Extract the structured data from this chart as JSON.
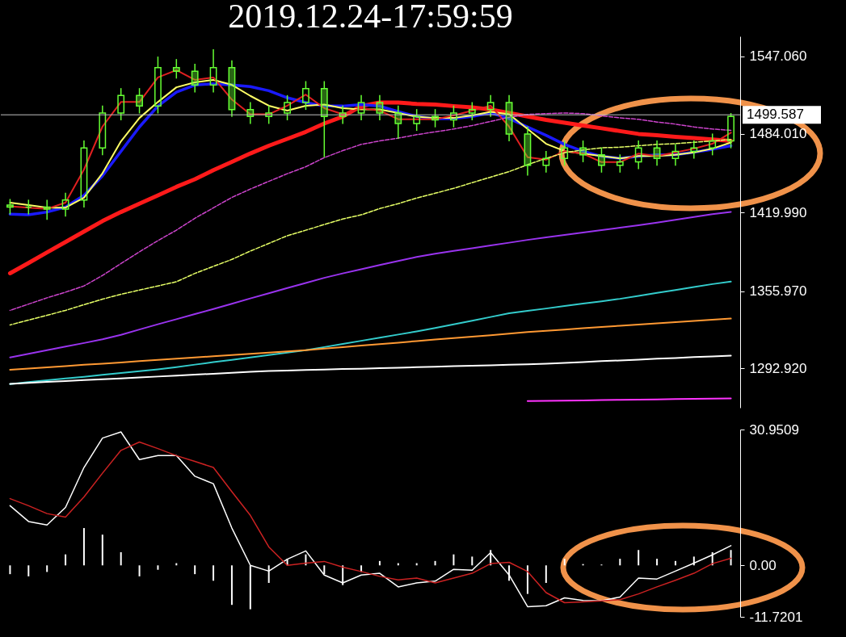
{
  "chart_data": [
    {
      "type": "candlestick",
      "title": "2019.12.24-17:59:59",
      "color": "#66ff33",
      "categories": [
        null,
        null,
        null,
        null,
        null,
        null,
        null,
        null,
        null,
        null,
        null,
        null,
        null,
        null,
        null,
        null,
        null,
        null,
        null,
        null,
        null,
        null,
        null,
        null,
        null,
        null,
        null,
        null,
        null,
        null,
        null,
        null,
        null,
        null,
        null,
        null,
        null,
        null,
        null,
        null
      ],
      "ohlc": [
        [
          1426.0,
          1431.0,
          1418.4,
          1424.4
        ],
        [
          1424.4,
          1430.4,
          1418.4,
          1424.4
        ],
        [
          1424.4,
          1430.4,
          1414.0,
          1422.7
        ],
        [
          1422.7,
          1436.1,
          1416.7,
          1430.1
        ],
        [
          1430.1,
          1478.6,
          1424.1,
          1472.6
        ],
        [
          1472.6,
          1507.1,
          1466.6,
          1501.1
        ],
        [
          1501.1,
          1521.3,
          1495.1,
          1515.3
        ],
        [
          1515.3,
          1521.3,
          1500.7,
          1506.7
        ],
        [
          1506.7,
          1547.0,
          1500.7,
          1538.0
        ],
        [
          1538.0,
          1545.0,
          1529.1,
          1535.1
        ],
        [
          1535.1,
          1541.1,
          1517.8,
          1523.8
        ],
        [
          1523.8,
          1553.0,
          1517.8,
          1538.0
        ],
        [
          1538.0,
          1544.0,
          1497.9,
          1503.9
        ],
        [
          1503.9,
          1509.9,
          1492.2,
          1498.2
        ],
        [
          1498.2,
          1507.1,
          1492.2,
          1501.1
        ],
        [
          1501.1,
          1515.6,
          1495.1,
          1509.6
        ],
        [
          1509.6,
          1527.0,
          1503.6,
          1521.0
        ],
        [
          1521.0,
          1527.0,
          1465.0,
          1498.2
        ],
        [
          1498.2,
          1507.1,
          1492.2,
          1501.1
        ],
        [
          1501.1,
          1515.6,
          1495.1,
          1509.6
        ],
        [
          1509.6,
          1515.6,
          1495.1,
          1501.1
        ],
        [
          1501.1,
          1507.1,
          1480.0,
          1492.5
        ],
        [
          1492.5,
          1504.2,
          1486.5,
          1498.2
        ],
        [
          1498.2,
          1504.2,
          1489.4,
          1495.4
        ],
        [
          1495.4,
          1507.1,
          1489.4,
          1501.1
        ],
        [
          1501.1,
          1509.9,
          1495.1,
          1503.9
        ],
        [
          1503.9,
          1515.6,
          1497.9,
          1509.6
        ],
        [
          1509.6,
          1515.6,
          1478.0,
          1484.0
        ],
        [
          1484.0,
          1490.0,
          1450.0,
          1458.5
        ],
        [
          1458.5,
          1470.1,
          1452.5,
          1464.1
        ],
        [
          1464.1,
          1478.6,
          1458.1,
          1472.6
        ],
        [
          1472.6,
          1478.6,
          1461.0,
          1467.0
        ],
        [
          1467.0,
          1473.0,
          1452.5,
          1458.5
        ],
        [
          1458.5,
          1467.3,
          1452.5,
          1461.3
        ],
        [
          1461.3,
          1478.6,
          1455.3,
          1472.6
        ],
        [
          1472.6,
          1478.6,
          1458.1,
          1464.1
        ],
        [
          1464.1,
          1475.8,
          1458.1,
          1469.8
        ],
        [
          1469.8,
          1478.6,
          1463.8,
          1472.6
        ],
        [
          1472.6,
          1484.3,
          1466.6,
          1478.3
        ],
        [
          1478.3,
          1501.0,
          1472.3,
          1498.2
        ]
      ],
      "series": [
        {
          "type": "line",
          "color": "#ff1a1a",
          "values": [
            1370.5,
            1378.9,
            1387.5,
            1396.0,
            1404.5,
            1413.0,
            1420.4,
            1427.2,
            1434.0,
            1440.9,
            1447.1,
            1454.5,
            1461.3,
            1468.1,
            1474.4,
            1480.0,
            1485.7,
            1492.5,
            1498.2,
            1506.7,
            1509.6,
            1509.6,
            1508.4,
            1507.9,
            1506.7,
            1505.6,
            1503.9,
            1501.1,
            1498.2,
            1495.4,
            1493.1,
            1490.8,
            1488.6,
            1486.3,
            1484.0,
            1482.9,
            1481.7,
            1480.6,
            1479.5,
            1478.4
          ]
        },
        {
          "type": "line",
          "color": "#1a1aff",
          "values": [
            1418.7,
            1418.1,
            1420.4,
            1424.4,
            1434.0,
            1449.9,
            1469.8,
            1489.7,
            1506.7,
            1518.1,
            1523.8,
            1524.9,
            1523.8,
            1522.6,
            1519.2,
            1513.5,
            1509.6,
            1506.7,
            1506.7,
            1507.9,
            1506.7,
            1502.2,
            1498.2,
            1496.5,
            1496.5,
            1498.2,
            1501.1,
            1496.5,
            1489.7,
            1482.9,
            1475.5,
            1469.8,
            1465.8,
            1464.1,
            1465.8,
            1467.0,
            1467.0,
            1469.2,
            1471.5,
            1474.4
          ]
        },
        {
          "type": "line",
          "color": "#ffff66",
          "values": [
            1428,
            1426,
            1424,
            1424,
            1432,
            1452,
            1478,
            1497,
            1510,
            1522,
            1526,
            1528,
            1524,
            1515,
            1507,
            1503,
            1507,
            1508,
            1505,
            1504,
            1504,
            1501,
            1498,
            1497,
            1497,
            1499,
            1502,
            1500,
            1488,
            1476,
            1470,
            1468,
            1466,
            1464,
            1466,
            1466,
            1467,
            1469,
            1472,
            1477
          ]
        },
        {
          "type": "line",
          "color": "#e02020",
          "values": [
            1425,
            1424,
            1423,
            1428,
            1455,
            1490,
            1510,
            1510,
            1530,
            1536,
            1528,
            1530,
            1512,
            1500,
            1500,
            1507,
            1516,
            1505,
            1500,
            1505,
            1503,
            1496,
            1496,
            1496,
            1499,
            1503,
            1507,
            1490,
            1465,
            1463,
            1470,
            1468,
            1461,
            1461,
            1468,
            1466,
            1469,
            1472,
            1476,
            1485
          ]
        },
        {
          "type": "line",
          "color": "#cc44cc",
          "line_style": "dashed",
          "values": [
            1340.3,
            1345.4,
            1350.5,
            1355.1,
            1360.2,
            1368.7,
            1378.4,
            1388.0,
            1397.1,
            1405.6,
            1415.3,
            1423.8,
            1432.3,
            1439.1,
            1445.4,
            1451.6,
            1457.3,
            1464.7,
            1470.4,
            1475.5,
            1478.3,
            1480.6,
            1483.4,
            1485.7,
            1488.0,
            1490.8,
            1494.2,
            1497.6,
            1499.9,
            1500.5,
            1501.1,
            1500.5,
            1498.8,
            1497.1,
            1495.9,
            1493.7,
            1492.0,
            1489.7,
            1488.0,
            1486.9
          ]
        },
        {
          "type": "line",
          "color": "#e6ff66",
          "line_style": "dashed",
          "values": [
            1328.4,
            1332.4,
            1336.3,
            1340.3,
            1344.9,
            1349.4,
            1353.4,
            1356.8,
            1360.2,
            1363.6,
            1370.4,
            1376.1,
            1381.8,
            1388.6,
            1394.8,
            1401.1,
            1405.6,
            1410.2,
            1414.7,
            1418.1,
            1423.2,
            1427.2,
            1431.8,
            1435.7,
            1439.7,
            1444.3,
            1448.8,
            1453.3,
            1459.0,
            1464.1,
            1468.7,
            1471.0,
            1472.7,
            1473.2,
            1474.4,
            1475.5,
            1476.1,
            1477.2,
            1478.3,
            1479.5
          ]
        },
        {
          "type": "line",
          "color": "#9933ee",
          "values": [
            1302.0,
            1304.9,
            1307.9,
            1310.8,
            1313.7,
            1316.7,
            1320.4,
            1324.7,
            1329.0,
            1333.1,
            1337.3,
            1341.4,
            1345.7,
            1350.0,
            1354.2,
            1358.5,
            1362.6,
            1366.8,
            1370.4,
            1373.8,
            1377.2,
            1380.5,
            1383.8,
            1386.4,
            1388.7,
            1390.9,
            1393.2,
            1395.4,
            1397.7,
            1399.8,
            1401.7,
            1403.7,
            1405.6,
            1407.6,
            1409.6,
            1411.8,
            1414.0,
            1416.3,
            1418.6,
            1420.5
          ]
        },
        {
          "type": "line",
          "color": "#33cccc",
          "values": [
            1280.3,
            1281.8,
            1283.3,
            1284.8,
            1286.2,
            1287.8,
            1289.2,
            1290.8,
            1292.3,
            1294.1,
            1296.1,
            1298.1,
            1300.0,
            1302.0,
            1303.9,
            1305.9,
            1307.8,
            1310.4,
            1312.9,
            1315.5,
            1318.0,
            1320.6,
            1323.2,
            1325.9,
            1328.9,
            1331.9,
            1334.9,
            1337.9,
            1339.9,
            1341.8,
            1343.8,
            1345.8,
            1347.7,
            1349.7,
            1352.1,
            1354.5,
            1356.9,
            1359.3,
            1361.7,
            1363.7
          ]
        },
        {
          "type": "line",
          "color": "#ff9933",
          "values": [
            1291.9,
            1292.9,
            1293.9,
            1294.9,
            1296.0,
            1296.9,
            1297.9,
            1298.9,
            1299.9,
            1300.9,
            1301.9,
            1302.9,
            1303.9,
            1304.9,
            1305.9,
            1306.9,
            1307.9,
            1309.1,
            1310.3,
            1311.6,
            1312.8,
            1314.0,
            1315.3,
            1316.5,
            1317.7,
            1318.9,
            1320.1,
            1321.4,
            1322.6,
            1323.7,
            1324.7,
            1325.7,
            1326.7,
            1327.8,
            1328.7,
            1329.7,
            1330.7,
            1331.7,
            1332.7,
            1333.6
          ]
        },
        {
          "type": "line",
          "color": "#ffffff",
          "values": [
            1280.4,
            1281.2,
            1282.0,
            1282.7,
            1283.5,
            1284.2,
            1284.9,
            1285.7,
            1286.4,
            1287.1,
            1287.9,
            1288.7,
            1289.4,
            1290.2,
            1290.9,
            1291.3,
            1291.7,
            1292.1,
            1292.5,
            1292.8,
            1293.2,
            1293.6,
            1294.0,
            1294.4,
            1294.8,
            1295.2,
            1295.6,
            1296.0,
            1296.3,
            1296.9,
            1297.5,
            1298.2,
            1298.9,
            1299.5,
            1300.2,
            1300.9,
            1301.5,
            1302.2,
            1302.8,
            1303.4
          ]
        },
        {
          "type": "line",
          "color": "#ff33ff",
          "values": [
            null,
            null,
            null,
            null,
            null,
            null,
            null,
            null,
            null,
            null,
            null,
            null,
            null,
            null,
            null,
            null,
            null,
            null,
            null,
            null,
            null,
            null,
            null,
            null,
            null,
            null,
            null,
            null,
            1266.4,
            1266.6,
            1266.8,
            1267.0,
            1267.2,
            1267.4,
            1267.6,
            1267.8,
            1268.0,
            1268.2,
            1268.4,
            1268.6
          ]
        }
      ],
      "ylim": [
        1261,
        1563.5
      ],
      "yticks": [
        {
          "value": 1292.92,
          "label": "1292.920"
        },
        {
          "value": 1355.97,
          "label": "1355.970"
        },
        {
          "value": 1419.99,
          "label": "1419.990"
        },
        {
          "value": 1484.01,
          "label": "1484.010"
        },
        {
          "value": 1547.06,
          "label": "1547.060"
        }
      ],
      "ref_lines": [
        {
          "axis": "y",
          "value": 1499.587,
          "label": "1499.587",
          "color": "#c0c0c0"
        }
      ],
      "tick_labels": "y"
    },
    {
      "type": "bar",
      "categories": [
        null,
        null,
        null,
        null,
        null,
        null,
        null,
        null,
        null,
        null,
        null,
        null,
        null,
        null,
        null,
        null,
        null,
        null,
        null,
        null,
        null,
        null,
        null,
        null,
        null,
        null,
        null,
        null,
        null,
        null,
        null,
        null,
        null,
        null,
        null,
        null,
        null,
        null,
        null,
        null
      ],
      "series": [
        {
          "type": "bar",
          "color": "#ffffff",
          "values": [
            -2.0,
            -2.5,
            -1.5,
            2.5,
            8.5,
            7.0,
            3.0,
            -2.5,
            -1.0,
            0.5,
            -2.0,
            -3.5,
            -9.0,
            -10.0,
            -4.0,
            1.5,
            2.5,
            -2.0,
            -4.5,
            -1.5,
            1.0,
            0.5,
            0.5,
            1.0,
            2.5,
            2.0,
            3.5,
            -3.5,
            -6.5,
            -4.0,
            1.5,
            0.3,
            0.2,
            1.5,
            3.5,
            1.5,
            1.0,
            2.0,
            3.0,
            3.5
          ]
        },
        {
          "type": "line",
          "color": "#ffffff",
          "values": [
            13.6,
            10.0,
            9.2,
            13.2,
            22.3,
            29.0,
            30.4,
            24.1,
            25.0,
            25.0,
            20.3,
            18.6,
            8.5,
            0,
            -1.3,
            1.4,
            3.3,
            -2.2,
            -4.0,
            -2.2,
            -1.8,
            -4.9,
            -4.0,
            -3.6,
            -0.9,
            -1.1,
            2.9,
            -2.2,
            -9.4,
            -9.2,
            -7.4,
            -8.0,
            -8.1,
            -7.2,
            -2.9,
            -3.1,
            -1.3,
            0.5,
            2.4,
            4.5
          ]
        },
        {
          "type": "line",
          "color": "#cc2222",
          "values": [
            15.2,
            13.6,
            11.8,
            11.0,
            15.6,
            21.0,
            26.2,
            28.1,
            26.6,
            25.0,
            23.7,
            22.3,
            16.8,
            11.4,
            4.2,
            0,
            0.5,
            0.9,
            -0.4,
            -1.4,
            -2.5,
            -3.3,
            -2.9,
            -4.0,
            -2.9,
            -1.8,
            0.4,
            0.7,
            -1.4,
            -6.2,
            -8.5,
            -8.3,
            -8.1,
            -7.8,
            -6.5,
            -4.9,
            -3.4,
            -1.8,
            0.4,
            1.6
          ]
        }
      ],
      "ylim": [
        -11.7201,
        30.9509
      ],
      "yticks": [
        30.9509,
        {
          "value": 0,
          "label": "0.00"
        },
        -11.7201
      ],
      "tick_labels": "y"
    }
  ]
}
